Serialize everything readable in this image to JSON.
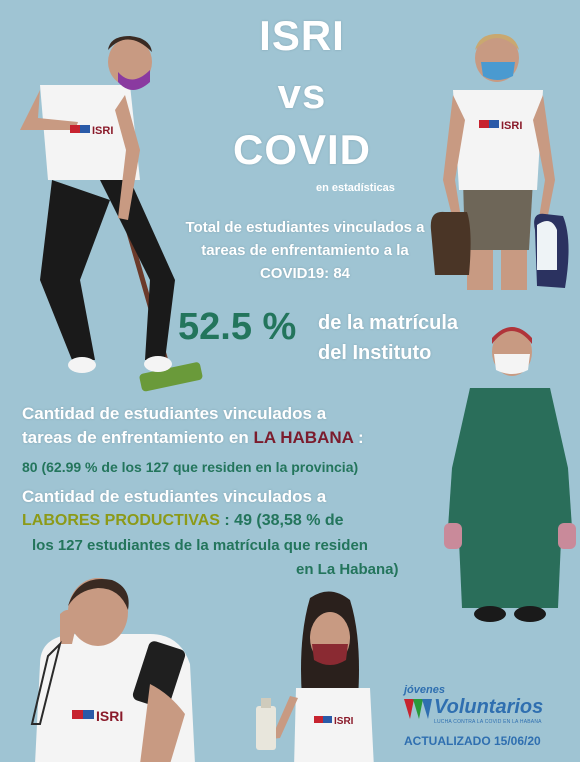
{
  "title": {
    "line1": "ISRI",
    "line2": "vs",
    "line3": "COVID",
    "sub": "en estadísticas"
  },
  "total": {
    "line1": "Total de estudiantes vinculados a",
    "line2": "tareas de enfrentamiento a la",
    "line3": "COVID19: 84"
  },
  "percent": {
    "value": "52.5 %",
    "text1": "de la matrícula",
    "text2": "del Instituto"
  },
  "habana": {
    "line1": "Cantidad de estudiantes vinculados a",
    "line2_pre": "tareas de enfrentamiento en",
    "line2_hl": "LA HABANA",
    "line2_post": ":",
    "line3": "80 (62.99 % de los 127 que residen en la provincia)"
  },
  "labores": {
    "line1": "Cantidad de estudiantes vinculados a",
    "line2_hl": "LABORES PRODUCTIVAS",
    "line2_post": ":  49 (38,58 % de",
    "line3": "los 127 estudiantes de la matrícula que residen",
    "line4": "en La Habana)"
  },
  "shirt_logo": "ISRI",
  "footer": {
    "brand_top": "jóvenes",
    "brand_main": "Voluntarios",
    "tagline": "LUCHA CONTRA LA COVID EN LA HABANA",
    "updated": "ACTUALIZADO 15/06/20"
  },
  "colors": {
    "background": "#9fc4d3",
    "green": "#23755c",
    "red": "#7b1c2d",
    "olive": "#8c9a18",
    "footer_blue": "#2f6fb0"
  }
}
